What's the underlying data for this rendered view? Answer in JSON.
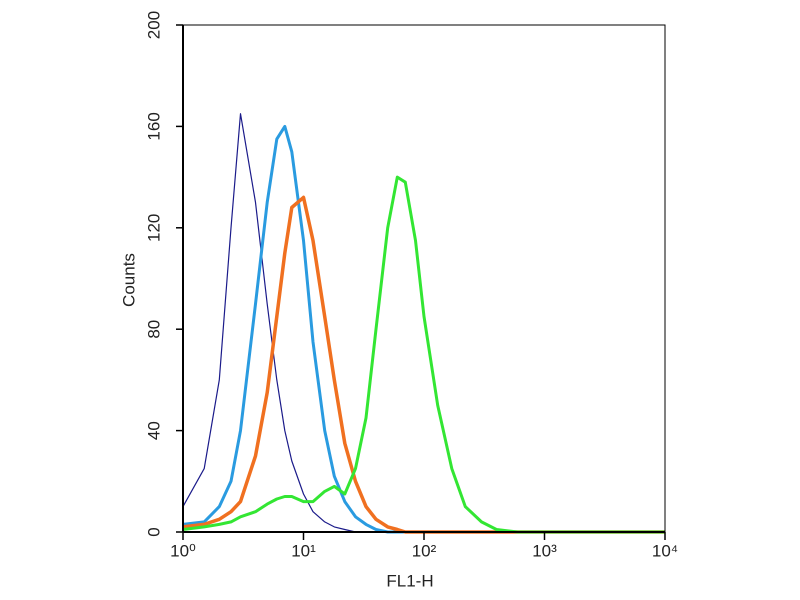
{
  "chart_data": {
    "type": "line",
    "x_label": "FL1-H",
    "y_label": "Counts",
    "xscale": "log",
    "xlim": [
      1,
      10000
    ],
    "ylim": [
      0,
      200
    ],
    "xticks": [
      {
        "value": 1,
        "label": "10⁰"
      },
      {
        "value": 10,
        "label": "10¹"
      },
      {
        "value": 100,
        "label": "10²"
      },
      {
        "value": 1000,
        "label": "10³"
      },
      {
        "value": 10000,
        "label": "10⁴"
      }
    ],
    "yticks": [
      0,
      40,
      80,
      120,
      160,
      200
    ],
    "x": [
      1,
      1.5,
      2,
      2.5,
      3,
      4,
      5,
      6,
      7,
      8,
      10,
      12,
      15,
      18,
      22,
      27,
      33,
      40,
      50,
      60,
      70,
      85,
      100,
      130,
      170,
      220,
      300,
      400,
      600,
      1000,
      10000
    ],
    "series": [
      {
        "color": "#1b1b8a",
        "line_width": 1.2,
        "values": [
          10,
          25,
          60,
          120,
          165,
          130,
          90,
          60,
          40,
          28,
          15,
          8,
          4,
          2,
          1,
          0,
          0,
          0,
          0,
          0,
          0,
          0,
          0,
          0,
          0,
          0,
          0,
          0,
          0,
          0,
          0
        ]
      },
      {
        "color": "#2a9be0",
        "line_width": 3,
        "values": [
          3,
          4,
          10,
          20,
          40,
          90,
          130,
          155,
          160,
          150,
          115,
          75,
          40,
          22,
          12,
          6,
          3,
          1,
          0,
          0,
          0,
          0,
          0,
          0,
          0,
          0,
          0,
          0,
          0,
          0,
          0
        ]
      },
      {
        "color": "#f07020",
        "line_width": 3.5,
        "values": [
          2,
          3,
          5,
          8,
          12,
          30,
          55,
          85,
          110,
          128,
          132,
          115,
          85,
          60,
          35,
          20,
          10,
          5,
          2,
          1,
          0,
          0,
          0,
          0,
          0,
          0,
          0,
          0,
          0,
          0,
          0
        ]
      },
      {
        "color": "#33e633",
        "line_width": 3,
        "values": [
          1,
          2,
          3,
          4,
          6,
          8,
          11,
          13,
          14,
          14,
          12,
          12,
          16,
          18,
          15,
          25,
          45,
          80,
          120,
          140,
          138,
          115,
          85,
          50,
          25,
          10,
          4,
          1,
          0,
          0,
          0
        ]
      }
    ]
  }
}
